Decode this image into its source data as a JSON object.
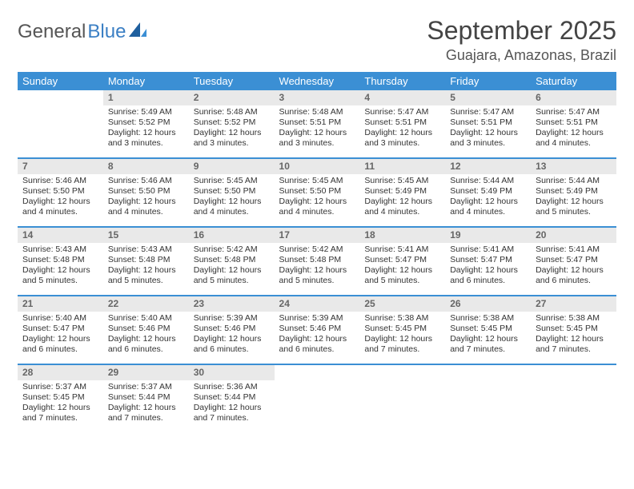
{
  "brand": {
    "part1": "General",
    "part2": "Blue"
  },
  "month_title": "September 2025",
  "location": "Guajara, Amazonas, Brazil",
  "day_headers": [
    "Sunday",
    "Monday",
    "Tuesday",
    "Wednesday",
    "Thursday",
    "Friday",
    "Saturday"
  ],
  "colors": {
    "header_bg": "#3b8fd4",
    "header_text": "#ffffff",
    "daynum_bg": "#e9e9e9",
    "daynum_text": "#666666",
    "row_border": "#3b8fd4",
    "logo_blue": "#3b7fc4",
    "title_color": "#444444",
    "location_color": "#555555"
  },
  "typography": {
    "month_fontsize": 32,
    "location_fontsize": 18,
    "header_fontsize": 13,
    "daynum_fontsize": 12,
    "body_fontsize": 10.5
  },
  "weeks": [
    [
      {
        "empty": true
      },
      {
        "num": "1",
        "sunrise": "Sunrise: 5:49 AM",
        "sunset": "Sunset: 5:52 PM",
        "daylight": "Daylight: 12 hours and 3 minutes."
      },
      {
        "num": "2",
        "sunrise": "Sunrise: 5:48 AM",
        "sunset": "Sunset: 5:52 PM",
        "daylight": "Daylight: 12 hours and 3 minutes."
      },
      {
        "num": "3",
        "sunrise": "Sunrise: 5:48 AM",
        "sunset": "Sunset: 5:51 PM",
        "daylight": "Daylight: 12 hours and 3 minutes."
      },
      {
        "num": "4",
        "sunrise": "Sunrise: 5:47 AM",
        "sunset": "Sunset: 5:51 PM",
        "daylight": "Daylight: 12 hours and 3 minutes."
      },
      {
        "num": "5",
        "sunrise": "Sunrise: 5:47 AM",
        "sunset": "Sunset: 5:51 PM",
        "daylight": "Daylight: 12 hours and 3 minutes."
      },
      {
        "num": "6",
        "sunrise": "Sunrise: 5:47 AM",
        "sunset": "Sunset: 5:51 PM",
        "daylight": "Daylight: 12 hours and 4 minutes."
      }
    ],
    [
      {
        "num": "7",
        "sunrise": "Sunrise: 5:46 AM",
        "sunset": "Sunset: 5:50 PM",
        "daylight": "Daylight: 12 hours and 4 minutes."
      },
      {
        "num": "8",
        "sunrise": "Sunrise: 5:46 AM",
        "sunset": "Sunset: 5:50 PM",
        "daylight": "Daylight: 12 hours and 4 minutes."
      },
      {
        "num": "9",
        "sunrise": "Sunrise: 5:45 AM",
        "sunset": "Sunset: 5:50 PM",
        "daylight": "Daylight: 12 hours and 4 minutes."
      },
      {
        "num": "10",
        "sunrise": "Sunrise: 5:45 AM",
        "sunset": "Sunset: 5:50 PM",
        "daylight": "Daylight: 12 hours and 4 minutes."
      },
      {
        "num": "11",
        "sunrise": "Sunrise: 5:45 AM",
        "sunset": "Sunset: 5:49 PM",
        "daylight": "Daylight: 12 hours and 4 minutes."
      },
      {
        "num": "12",
        "sunrise": "Sunrise: 5:44 AM",
        "sunset": "Sunset: 5:49 PM",
        "daylight": "Daylight: 12 hours and 4 minutes."
      },
      {
        "num": "13",
        "sunrise": "Sunrise: 5:44 AM",
        "sunset": "Sunset: 5:49 PM",
        "daylight": "Daylight: 12 hours and 5 minutes."
      }
    ],
    [
      {
        "num": "14",
        "sunrise": "Sunrise: 5:43 AM",
        "sunset": "Sunset: 5:48 PM",
        "daylight": "Daylight: 12 hours and 5 minutes."
      },
      {
        "num": "15",
        "sunrise": "Sunrise: 5:43 AM",
        "sunset": "Sunset: 5:48 PM",
        "daylight": "Daylight: 12 hours and 5 minutes."
      },
      {
        "num": "16",
        "sunrise": "Sunrise: 5:42 AM",
        "sunset": "Sunset: 5:48 PM",
        "daylight": "Daylight: 12 hours and 5 minutes."
      },
      {
        "num": "17",
        "sunrise": "Sunrise: 5:42 AM",
        "sunset": "Sunset: 5:48 PM",
        "daylight": "Daylight: 12 hours and 5 minutes."
      },
      {
        "num": "18",
        "sunrise": "Sunrise: 5:41 AM",
        "sunset": "Sunset: 5:47 PM",
        "daylight": "Daylight: 12 hours and 5 minutes."
      },
      {
        "num": "19",
        "sunrise": "Sunrise: 5:41 AM",
        "sunset": "Sunset: 5:47 PM",
        "daylight": "Daylight: 12 hours and 6 minutes."
      },
      {
        "num": "20",
        "sunrise": "Sunrise: 5:41 AM",
        "sunset": "Sunset: 5:47 PM",
        "daylight": "Daylight: 12 hours and 6 minutes."
      }
    ],
    [
      {
        "num": "21",
        "sunrise": "Sunrise: 5:40 AM",
        "sunset": "Sunset: 5:47 PM",
        "daylight": "Daylight: 12 hours and 6 minutes."
      },
      {
        "num": "22",
        "sunrise": "Sunrise: 5:40 AM",
        "sunset": "Sunset: 5:46 PM",
        "daylight": "Daylight: 12 hours and 6 minutes."
      },
      {
        "num": "23",
        "sunrise": "Sunrise: 5:39 AM",
        "sunset": "Sunset: 5:46 PM",
        "daylight": "Daylight: 12 hours and 6 minutes."
      },
      {
        "num": "24",
        "sunrise": "Sunrise: 5:39 AM",
        "sunset": "Sunset: 5:46 PM",
        "daylight": "Daylight: 12 hours and 6 minutes."
      },
      {
        "num": "25",
        "sunrise": "Sunrise: 5:38 AM",
        "sunset": "Sunset: 5:45 PM",
        "daylight": "Daylight: 12 hours and 7 minutes."
      },
      {
        "num": "26",
        "sunrise": "Sunrise: 5:38 AM",
        "sunset": "Sunset: 5:45 PM",
        "daylight": "Daylight: 12 hours and 7 minutes."
      },
      {
        "num": "27",
        "sunrise": "Sunrise: 5:38 AM",
        "sunset": "Sunset: 5:45 PM",
        "daylight": "Daylight: 12 hours and 7 minutes."
      }
    ],
    [
      {
        "num": "28",
        "sunrise": "Sunrise: 5:37 AM",
        "sunset": "Sunset: 5:45 PM",
        "daylight": "Daylight: 12 hours and 7 minutes."
      },
      {
        "num": "29",
        "sunrise": "Sunrise: 5:37 AM",
        "sunset": "Sunset: 5:44 PM",
        "daylight": "Daylight: 12 hours and 7 minutes."
      },
      {
        "num": "30",
        "sunrise": "Sunrise: 5:36 AM",
        "sunset": "Sunset: 5:44 PM",
        "daylight": "Daylight: 12 hours and 7 minutes."
      },
      {
        "empty": true
      },
      {
        "empty": true
      },
      {
        "empty": true
      },
      {
        "empty": true
      }
    ]
  ]
}
